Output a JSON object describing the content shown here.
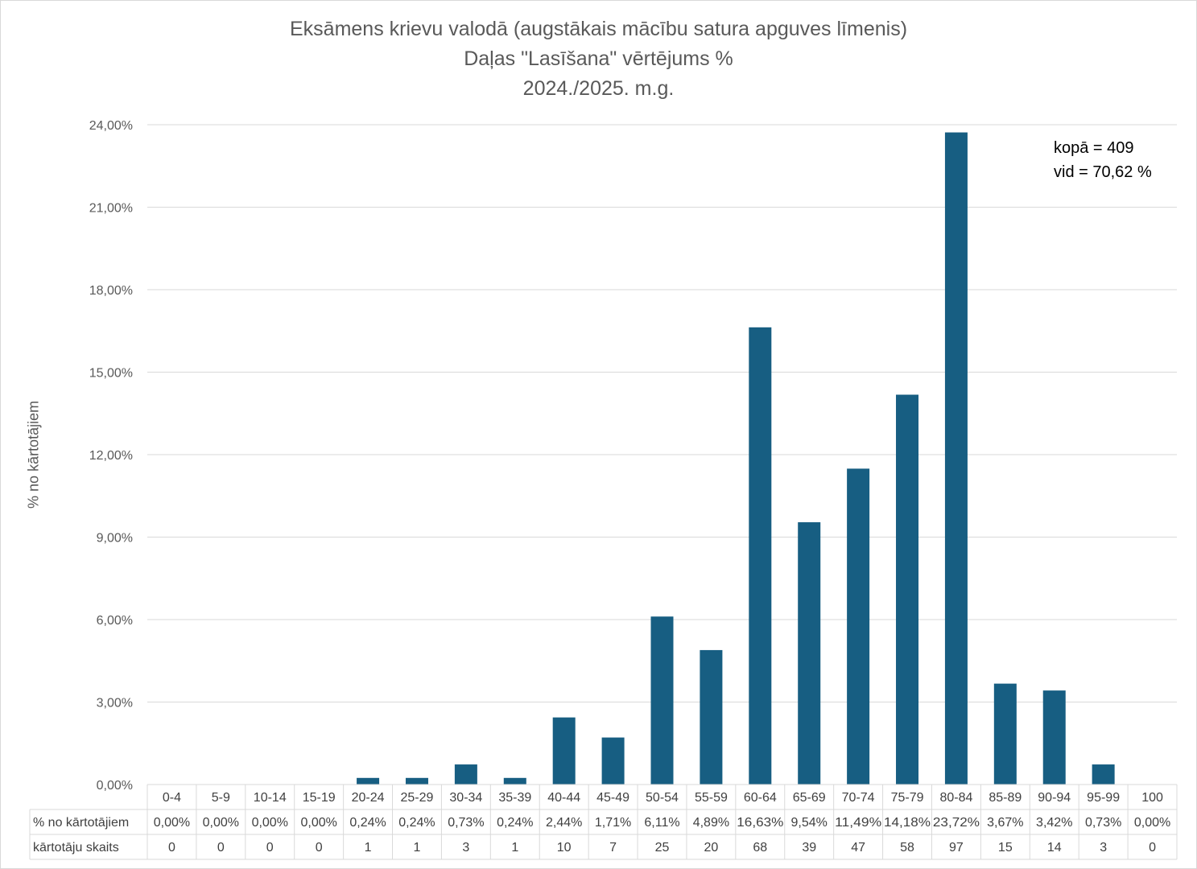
{
  "chart_data": {
    "type": "bar",
    "title": [
      "Eksāmens krievu valodā (augstākais mācību satura apguves līmenis)",
      "Daļas \"Lasīšana\" vērtējums %",
      "2024./2025. m.g."
    ],
    "ylabel": "% no kārtotājiem",
    "ylim": [
      0,
      24
    ],
    "yticks": [
      "0,00%",
      "3,00%",
      "6,00%",
      "9,00%",
      "12,00%",
      "15,00%",
      "18,00%",
      "21,00%",
      "24,00%"
    ],
    "categories": [
      "0-4",
      "5-9",
      "10-14",
      "15-19",
      "20-24",
      "25-29",
      "30-34",
      "35-39",
      "40-44",
      "45-49",
      "50-54",
      "55-59",
      "60-64",
      "65-69",
      "70-74",
      "75-79",
      "80-84",
      "85-89",
      "90-94",
      "95-99",
      "100"
    ],
    "series": [
      {
        "name": "% no kārtotājiem",
        "values": [
          0,
          0,
          0,
          0,
          0.24,
          0.24,
          0.73,
          0.24,
          2.44,
          1.71,
          6.11,
          4.89,
          16.63,
          9.54,
          11.49,
          14.18,
          23.72,
          3.67,
          3.42,
          0.73,
          0
        ],
        "labels": [
          "0,00%",
          "0,00%",
          "0,00%",
          "0,00%",
          "0,24%",
          "0,24%",
          "0,73%",
          "0,24%",
          "2,44%",
          "1,71%",
          "6,11%",
          "4,89%",
          "16,63%",
          "9,54%",
          "11,49%",
          "14,18%",
          "23,72%",
          "3,67%",
          "3,42%",
          "0,73%",
          "0,00%"
        ]
      }
    ],
    "table_rows": [
      {
        "header": "% no kārtotājiem",
        "cells": [
          "0,00%",
          "0,00%",
          "0,00%",
          "0,00%",
          "0,24%",
          "0,24%",
          "0,73%",
          "0,24%",
          "2,44%",
          "1,71%",
          "6,11%",
          "4,89%",
          "16,63%",
          "9,54%",
          "11,49%",
          "14,18%",
          "23,72%",
          "3,67%",
          "3,42%",
          "0,73%",
          "0,00%"
        ]
      },
      {
        "header": "kārtotāju skaits",
        "cells": [
          "0",
          "0",
          "0",
          "0",
          "1",
          "1",
          "3",
          "1",
          "10",
          "7",
          "25",
          "20",
          "68",
          "39",
          "47",
          "58",
          "97",
          "15",
          "14",
          "3",
          "0"
        ]
      }
    ],
    "annotations": [
      "kopā = 409",
      "vid = 70,62 %"
    ],
    "bar_color": "#175e82",
    "grid": true
  }
}
